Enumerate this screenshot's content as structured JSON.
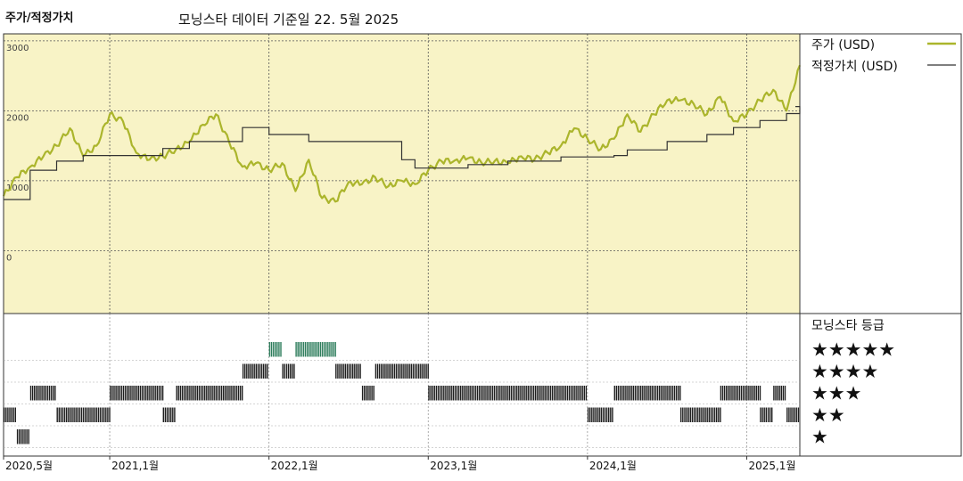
{
  "header": {
    "left_title": "주가/적정가치",
    "center_title": "모닝스타 데이터 기준일 22. 5월 2025"
  },
  "colors": {
    "price_line": "#abb52c",
    "fair_value_line": "#333333",
    "panel_bg": "#f8f3c6",
    "grid": "#555555",
    "rating_bar": "#1e1e1e",
    "rating_bar_5star": "#2e7d5c"
  },
  "chart_data": [
    {
      "type": "line",
      "x_range": [
        "2020-05",
        "2025-05"
      ],
      "ylim": [
        -900,
        3100
      ],
      "yticks": [
        "3000",
        "2000",
        "1000",
        "0"
      ],
      "grid": true,
      "legend_position": "right",
      "series": [
        {
          "name": "주가 (USD)",
          "x": [
            "2020-05",
            "2020-06",
            "2020-07",
            "2020-08",
            "2020-09",
            "2020-10",
            "2020-11",
            "2020-12",
            "2021-01",
            "2021-02",
            "2021-03",
            "2021-04",
            "2021-05",
            "2021-06",
            "2021-07",
            "2021-08",
            "2021-09",
            "2021-10",
            "2021-11",
            "2021-12",
            "2022-01",
            "2022-02",
            "2022-03",
            "2022-04",
            "2022-05",
            "2022-06",
            "2022-07",
            "2022-08",
            "2022-09",
            "2022-10",
            "2022-11",
            "2022-12",
            "2023-01",
            "2023-02",
            "2023-03",
            "2023-04",
            "2023-05",
            "2023-06",
            "2023-07",
            "2023-08",
            "2023-09",
            "2023-10",
            "2023-11",
            "2023-12",
            "2024-01",
            "2024-02",
            "2024-03",
            "2024-04",
            "2024-05",
            "2024-06",
            "2024-07",
            "2024-08",
            "2024-09",
            "2024-10",
            "2024-11",
            "2024-12",
            "2025-01",
            "2025-02",
            "2025-03",
            "2025-04",
            "2025-05"
          ],
          "values": [
            780,
            1050,
            1200,
            1350,
            1500,
            1750,
            1350,
            1500,
            1950,
            1850,
            1400,
            1300,
            1350,
            1450,
            1550,
            1800,
            1950,
            1550,
            1200,
            1250,
            1150,
            1250,
            850,
            1300,
            750,
            700,
            980,
            950,
            1050,
            920,
            1000,
            950,
            1150,
            1280,
            1290,
            1320,
            1260,
            1280,
            1250,
            1350,
            1300,
            1400,
            1500,
            1750,
            1600,
            1450,
            1600,
            1950,
            1700,
            1950,
            2150,
            2150,
            2100,
            1950,
            2200,
            1850,
            1950,
            2150,
            2300,
            2000,
            2650
          ]
        },
        {
          "name": "적정가치 (USD)",
          "x": [
            "2020-05",
            "2020-07",
            "2020-09",
            "2020-11",
            "2021-01",
            "2021-05",
            "2021-07",
            "2021-11",
            "2022-01",
            "2022-04",
            "2022-08",
            "2022-11",
            "2022-12",
            "2023-04",
            "2023-07",
            "2023-11",
            "2024-03",
            "2024-04",
            "2024-07",
            "2024-10",
            "2024-12",
            "2025-02",
            "2025-04",
            "2025-05"
          ],
          "values": [
            730,
            1150,
            1280,
            1360,
            1360,
            1460,
            1560,
            1760,
            1660,
            1560,
            1560,
            1300,
            1180,
            1230,
            1280,
            1340,
            1360,
            1440,
            1560,
            1660,
            1760,
            1860,
            1960,
            2060
          ]
        }
      ],
      "x_tick_labels": [
        "2020,5월",
        "2021,1월",
        "2022,1월",
        "2023,1월",
        "2024,1월",
        "2025,1월"
      ]
    },
    {
      "type": "heatmap",
      "title": "모닝스타 등급",
      "levels": [
        "★★★★★",
        "★★★★",
        "★★★",
        "★★",
        "★"
      ],
      "rating_periods": [
        {
          "rating": 1,
          "start": "2020-06",
          "end": "2020-07"
        },
        {
          "rating": 2,
          "start": "2020-05",
          "end": "2020-06"
        },
        {
          "rating": 3,
          "start": "2020-07",
          "end": "2020-09"
        },
        {
          "rating": 2,
          "start": "2020-09",
          "end": "2021-01"
        },
        {
          "rating": 3,
          "start": "2021-01",
          "end": "2021-05"
        },
        {
          "rating": 2,
          "start": "2021-05",
          "end": "2021-06"
        },
        {
          "rating": 3,
          "start": "2021-06",
          "end": "2021-11"
        },
        {
          "rating": 4,
          "start": "2021-11",
          "end": "2022-01"
        },
        {
          "rating": 5,
          "start": "2022-01",
          "end": "2022-02"
        },
        {
          "rating": 4,
          "start": "2022-02",
          "end": "2022-03"
        },
        {
          "rating": 5,
          "start": "2022-03",
          "end": "2022-06"
        },
        {
          "rating": 4,
          "start": "2022-06",
          "end": "2022-08"
        },
        {
          "rating": 3,
          "start": "2022-08",
          "end": "2022-09"
        },
        {
          "rating": 4,
          "start": "2022-09",
          "end": "2023-01"
        },
        {
          "rating": 3,
          "start": "2023-01",
          "end": "2024-01"
        },
        {
          "rating": 2,
          "start": "2024-01",
          "end": "2024-03"
        },
        {
          "rating": 3,
          "start": "2024-03",
          "end": "2024-08"
        },
        {
          "rating": 2,
          "start": "2024-08",
          "end": "2024-11"
        },
        {
          "rating": 3,
          "start": "2024-11",
          "end": "2025-02"
        },
        {
          "rating": 2,
          "start": "2025-02",
          "end": "2025-03"
        },
        {
          "rating": 3,
          "start": "2025-03",
          "end": "2025-04"
        },
        {
          "rating": 2,
          "start": "2025-04",
          "end": "2025-05"
        }
      ]
    }
  ]
}
